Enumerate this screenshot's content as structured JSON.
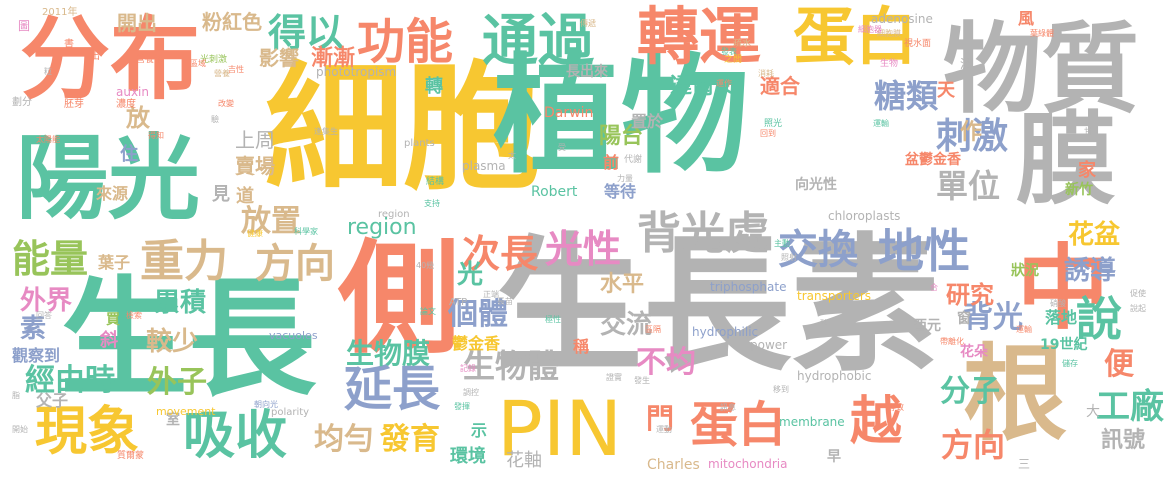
{
  "palette": {
    "yellow": "#f7c731",
    "teal": "#5ac3a2",
    "orange": "#f6876a",
    "green": "#98c45a",
    "blue": "#8da0cb",
    "pink": "#e78ac3",
    "tan": "#d9b98c",
    "gray": "#b3b3b3"
  },
  "words": [
    {
      "text": "生長素",
      "color": "gray"
    },
    {
      "text": "細胞",
      "color": "yellow"
    },
    {
      "text": "植物",
      "color": "teal"
    },
    {
      "text": "生長",
      "color": "teal"
    },
    {
      "text": "側",
      "color": "orange"
    },
    {
      "text": "分布",
      "color": "orange"
    },
    {
      "text": "陽光",
      "color": "teal"
    },
    {
      "text": "物質",
      "color": "gray"
    },
    {
      "text": "膜",
      "color": "gray"
    },
    {
      "text": "根",
      "color": "tan"
    },
    {
      "text": "中",
      "color": "orange"
    },
    {
      "text": "PIN",
      "color": "yellow"
    },
    {
      "text": "轉運",
      "color": "orange"
    },
    {
      "text": "蛋白",
      "color": "yellow"
    },
    {
      "text": "功能",
      "color": "orange"
    },
    {
      "text": "通過",
      "color": "teal"
    },
    {
      "text": "得以",
      "color": "teal"
    },
    {
      "text": "現象",
      "color": "yellow"
    },
    {
      "text": "吸收",
      "color": "teal"
    },
    {
      "text": "蛋白",
      "color": "orange"
    },
    {
      "text": "越",
      "color": "orange"
    },
    {
      "text": "說",
      "color": "teal"
    },
    {
      "text": "背光處",
      "color": "gray"
    },
    {
      "text": "地性",
      "color": "blue"
    },
    {
      "text": "交換",
      "color": "blue"
    },
    {
      "text": "延長",
      "color": "blue"
    },
    {
      "text": "重力",
      "color": "tan"
    },
    {
      "text": "方向",
      "color": "tan"
    },
    {
      "text": "能量",
      "color": "green"
    },
    {
      "text": "光性",
      "color": "pink"
    },
    {
      "text": "次長",
      "color": "orange"
    },
    {
      "text": "刺激",
      "color": "blue"
    },
    {
      "text": "糖類",
      "color": "blue"
    },
    {
      "text": "單位",
      "color": "gray"
    },
    {
      "text": "生物體",
      "color": "gray"
    },
    {
      "text": "生物膜",
      "color": "teal"
    },
    {
      "text": "不均",
      "color": "pink"
    },
    {
      "text": "分子",
      "color": "teal"
    },
    {
      "text": "工廠",
      "color": "teal"
    },
    {
      "text": "背光",
      "color": "blue"
    },
    {
      "text": "誘導",
      "color": "blue"
    },
    {
      "text": "方向",
      "color": "orange"
    },
    {
      "text": "發育",
      "color": "yellow"
    },
    {
      "text": "均勻",
      "color": "tan"
    },
    {
      "text": "經由時",
      "color": "teal"
    },
    {
      "text": "外子",
      "color": "green"
    },
    {
      "text": "便",
      "color": "orange"
    },
    {
      "text": "region",
      "color": "teal"
    },
    {
      "text": "花盆",
      "color": "yellow"
    },
    {
      "text": "個體",
      "color": "blue"
    },
    {
      "text": "研究",
      "color": "orange"
    },
    {
      "text": "放置",
      "color": "tan"
    },
    {
      "text": "累積",
      "color": "teal"
    },
    {
      "text": "較少",
      "color": "tan"
    },
    {
      "text": "外界",
      "color": "pink"
    },
    {
      "text": "素",
      "color": "blue"
    },
    {
      "text": "光",
      "color": "teal"
    },
    {
      "text": "門",
      "color": "orange"
    },
    {
      "text": "交流",
      "color": "gray"
    },
    {
      "text": "水平",
      "color": "tan"
    },
    {
      "text": "漸漸",
      "color": "orange"
    },
    {
      "text": "影響",
      "color": "tan"
    },
    {
      "text": "上周",
      "color": "gray"
    },
    {
      "text": "賣場",
      "color": "tan"
    },
    {
      "text": "開出",
      "color": "tan"
    },
    {
      "text": "粉紅色",
      "color": "tan"
    },
    {
      "text": "達爾文",
      "color": "teal"
    },
    {
      "text": "陽台",
      "color": "green"
    },
    {
      "text": "適合",
      "color": "orange"
    },
    {
      "text": "Darwin",
      "color": "orange"
    },
    {
      "text": "Robert",
      "color": "teal"
    },
    {
      "text": "Charles",
      "color": "tan"
    },
    {
      "text": "鬱金香",
      "color": "yellow"
    },
    {
      "text": "盆鬱金香",
      "color": "orange"
    },
    {
      "text": "新竹",
      "color": "green"
    },
    {
      "text": "19世紀",
      "color": "teal"
    },
    {
      "text": "落地",
      "color": "teal"
    },
    {
      "text": "花朵",
      "color": "pink"
    },
    {
      "text": "向光性",
      "color": "gray"
    },
    {
      "text": "訊號",
      "color": "gray"
    },
    {
      "text": "花軸",
      "color": "gray"
    },
    {
      "text": "環境",
      "color": "teal"
    },
    {
      "text": "狀況",
      "color": "green"
    },
    {
      "text": "作",
      "color": "tan"
    },
    {
      "text": "家",
      "color": "orange"
    },
    {
      "text": "天",
      "color": "orange"
    },
    {
      "text": "見",
      "color": "gray"
    },
    {
      "text": "道",
      "color": "tan"
    },
    {
      "text": "住",
      "color": "blue"
    },
    {
      "text": "來源",
      "color": "tan"
    },
    {
      "text": "葉子",
      "color": "tan"
    },
    {
      "text": "觀察到",
      "color": "blue"
    },
    {
      "text": "父子",
      "color": "gray"
    },
    {
      "text": "斜",
      "color": "pink"
    },
    {
      "text": "買",
      "color": "green"
    },
    {
      "text": "窗",
      "color": "gray"
    },
    {
      "text": "前",
      "color": "orange"
    },
    {
      "text": "轉",
      "color": "teal"
    },
    {
      "text": "置於",
      "color": "gray"
    },
    {
      "text": "長出來",
      "color": "gray"
    },
    {
      "text": "等待",
      "color": "blue"
    },
    {
      "text": "放",
      "color": "tan"
    },
    {
      "text": "室",
      "color": "gray"
    },
    {
      "text": "稱",
      "color": "orange"
    },
    {
      "text": "示",
      "color": "teal"
    },
    {
      "text": "西元",
      "color": "gray"
    },
    {
      "text": "adenosine",
      "color": "gray"
    },
    {
      "text": "auxin",
      "color": "pink"
    },
    {
      "text": "phototropism",
      "color": "gray"
    },
    {
      "text": "plants",
      "color": "gray"
    },
    {
      "text": "plasma",
      "color": "gray"
    },
    {
      "text": "chloroplasts",
      "color": "gray"
    },
    {
      "text": "transporters",
      "color": "yellow"
    },
    {
      "text": "triphosphate",
      "color": "blue"
    },
    {
      "text": "hydrophilic",
      "color": "blue"
    },
    {
      "text": "hydrophobic",
      "color": "gray"
    },
    {
      "text": "vacuoles",
      "color": "blue"
    },
    {
      "text": "power",
      "color": "gray"
    },
    {
      "text": "membrane",
      "color": "teal"
    },
    {
      "text": "mitochondria",
      "color": "pink"
    },
    {
      "text": "movement",
      "color": "yellow"
    },
    {
      "text": "polarity",
      "color": "gray"
    },
    {
      "text": "ATP",
      "color": "gray"
    },
    {
      "text": "region",
      "color": "gray"
    },
    {
      "text": "2011年",
      "color": "tan"
    },
    {
      "text": "風",
      "color": "orange"
    },
    {
      "text": "波",
      "color": "gray"
    },
    {
      "text": "早",
      "color": "gray"
    },
    {
      "text": "大",
      "color": "gray"
    },
    {
      "text": "三",
      "color": "gray"
    },
    {
      "text": "圖",
      "color": "pink"
    },
    {
      "text": "書",
      "color": "orange"
    },
    {
      "text": "出",
      "color": "orange"
    },
    {
      "text": "營養物",
      "color": "orange"
    },
    {
      "text": "光刺激",
      "color": "green"
    },
    {
      "text": "吉性",
      "color": "orange"
    },
    {
      "text": "傳遞",
      "color": "tan"
    },
    {
      "text": "細胞膜",
      "color": "tan"
    },
    {
      "text": "疏水",
      "color": "tan"
    },
    {
      "text": "之間",
      "color": "yellow"
    },
    {
      "text": "發表",
      "color": "teal"
    },
    {
      "text": "消耗",
      "color": "tan"
    },
    {
      "text": "細胞器",
      "color": "pink"
    },
    {
      "text": "劃分",
      "color": "gray"
    },
    {
      "text": "胚芽",
      "color": "orange"
    },
    {
      "text": "濃度",
      "color": "orange"
    },
    {
      "text": "區域",
      "color": "orange"
    },
    {
      "text": "改變",
      "color": "orange"
    },
    {
      "text": "太陽能",
      "color": "orange"
    },
    {
      "text": "得知",
      "color": "orange"
    },
    {
      "text": "運輸",
      "color": "teal"
    },
    {
      "text": "生物",
      "color": "pink"
    },
    {
      "text": "結構",
      "color": "teal"
    },
    {
      "text": "照光",
      "color": "teal"
    },
    {
      "text": "回到",
      "color": "orange"
    },
    {
      "text": "代謝",
      "color": "gray"
    },
    {
      "text": "力量",
      "color": "gray"
    },
    {
      "text": "科學家",
      "color": "teal"
    },
    {
      "text": "支持",
      "color": "teal"
    },
    {
      "text": "40幾",
      "color": "gray"
    },
    {
      "text": "論文",
      "color": "teal"
    },
    {
      "text": "正端",
      "color": "gray"
    },
    {
      "text": "長苗",
      "color": "gray"
    },
    {
      "text": "極性",
      "color": "teal"
    },
    {
      "text": "區隔",
      "color": "orange"
    },
    {
      "text": "運輸",
      "color": "orange"
    },
    {
      "text": "帶離化",
      "color": "orange"
    },
    {
      "text": "儲存",
      "color": "teal"
    },
    {
      "text": "記錄",
      "color": "pink"
    },
    {
      "text": "證實",
      "color": "gray"
    },
    {
      "text": "發生",
      "color": "gray"
    },
    {
      "text": "訊息",
      "color": "gray"
    },
    {
      "text": "移到",
      "color": "gray"
    },
    {
      "text": "運動",
      "color": "gray"
    },
    {
      "text": "導致",
      "color": "orange"
    },
    {
      "text": "發揮",
      "color": "teal"
    },
    {
      "text": "調控",
      "color": "gray"
    },
    {
      "text": "回答",
      "color": "gray"
    },
    {
      "text": "檢索",
      "color": "orange"
    },
    {
      "text": "朝向光",
      "color": "blue"
    },
    {
      "text": "營養",
      "color": "tan"
    },
    {
      "text": "促使",
      "color": "gray"
    },
    {
      "text": "說起",
      "color": "gray"
    },
    {
      "text": "主動",
      "color": "teal"
    },
    {
      "text": "照射",
      "color": "gray"
    },
    {
      "text": "硝酸",
      "color": "gray"
    },
    {
      "text": "視水面",
      "color": "orange"
    },
    {
      "text": "質爾蒙",
      "color": "orange"
    },
    {
      "text": "脂",
      "color": "gray"
    },
    {
      "text": "受",
      "color": "gray"
    },
    {
      "text": "太",
      "color": "gray"
    },
    {
      "text": "甘",
      "color": "gray"
    },
    {
      "text": "酸",
      "color": "gray"
    },
    {
      "text": "合",
      "color": "pink"
    },
    {
      "text": "葉綠體",
      "color": "orange"
    },
    {
      "text": "運作",
      "color": "orange"
    },
    {
      "text": "健康",
      "color": "yellow"
    },
    {
      "text": "逢集生",
      "color": "gray"
    },
    {
      "text": "驗",
      "color": "gray"
    },
    {
      "text": "粒",
      "color": "gray"
    },
    {
      "text": "開始",
      "color": "gray"
    },
    {
      "text": "腹",
      "color": "gray"
    }
  ]
}
